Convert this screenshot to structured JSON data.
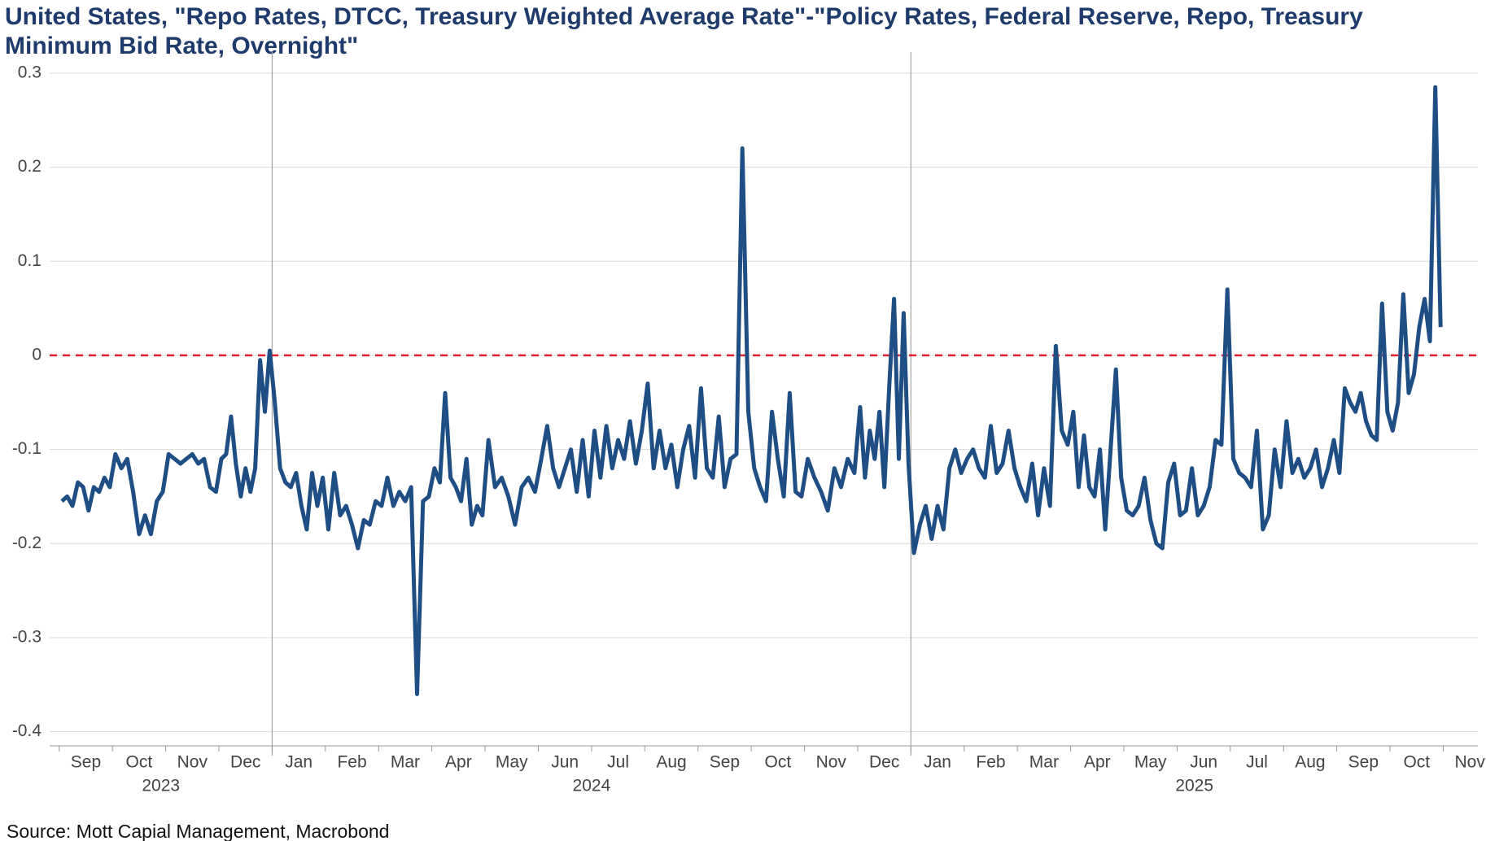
{
  "chart_data": {
    "type": "line",
    "title": [
      "United States, \"Repo Rates, DTCC, Treasury Weighted Average Rate\"-\"Policy Rates, Federal Reserve, Repo, Treasury",
      "Minimum Bid Rate, Overnight\""
    ],
    "source": "Source: Mott Capial Management, Macrobond",
    "ylim": [
      -0.415,
      0.312
    ],
    "yticks": [
      -0.4,
      -0.3,
      -0.2,
      -0.1,
      0.0,
      0.1,
      0.2,
      0.3
    ],
    "grid": true,
    "zero_line": {
      "value": 0,
      "color": "#e0202e"
    },
    "year_lines": [
      "2024-01",
      "2025-01"
    ],
    "xticks": [
      {
        "value": "2023-09",
        "label": "Sep"
      },
      {
        "value": "2023-10",
        "label": "Oct"
      },
      {
        "value": "2023-11",
        "label": "Nov"
      },
      {
        "value": "2023-12",
        "label": "Dec"
      },
      {
        "value": "2024-01",
        "label": "Jan"
      },
      {
        "value": "2024-02",
        "label": "Feb"
      },
      {
        "value": "2024-03",
        "label": "Mar"
      },
      {
        "value": "2024-04",
        "label": "Apr"
      },
      {
        "value": "2024-05",
        "label": "May"
      },
      {
        "value": "2024-06",
        "label": "Jun"
      },
      {
        "value": "2024-07",
        "label": "Jul"
      },
      {
        "value": "2024-08",
        "label": "Aug"
      },
      {
        "value": "2024-09",
        "label": "Sep"
      },
      {
        "value": "2024-10",
        "label": "Oct"
      },
      {
        "value": "2024-11",
        "label": "Nov"
      },
      {
        "value": "2024-12",
        "label": "Dec"
      },
      {
        "value": "2025-01",
        "label": "Jan"
      },
      {
        "value": "2025-02",
        "label": "Feb"
      },
      {
        "value": "2025-03",
        "label": "Mar"
      },
      {
        "value": "2025-04",
        "label": "Apr"
      },
      {
        "value": "2025-05",
        "label": "May"
      },
      {
        "value": "2025-06",
        "label": "Jun"
      },
      {
        "value": "2025-07",
        "label": "Jul"
      },
      {
        "value": "2025-08",
        "label": "Aug"
      },
      {
        "value": "2025-09",
        "label": "Sep"
      },
      {
        "value": "2025-10",
        "label": "Oct"
      },
      {
        "value": "2025-11",
        "label": "Nov"
      }
    ],
    "years": [
      "2023",
      "2024",
      "2025"
    ],
    "series": [
      {
        "color": "#1f4e85",
        "x": [
          "2023-09",
          "2023-09",
          "2023-09",
          "2023-09",
          "2023-09",
          "2023-09",
          "2023-09",
          "2023-09",
          "2023-09",
          "2023-09",
          "2023-10",
          "2023-10",
          "2023-10",
          "2023-10",
          "2023-10",
          "2023-10",
          "2023-10",
          "2023-10",
          "2023-10",
          "2023-11",
          "2023-11",
          "2023-11",
          "2023-11",
          "2023-11",
          "2023-11",
          "2023-11",
          "2023-11",
          "2023-11",
          "2023-12",
          "2023-12",
          "2023-12",
          "2023-12",
          "2023-12",
          "2023-12",
          "2023-12",
          "2023-12",
          "2023-12",
          "2023-12",
          "2023-12",
          "2024-01",
          "2024-01",
          "2024-01",
          "2024-01",
          "2024-01",
          "2024-01",
          "2024-01",
          "2024-01",
          "2024-01",
          "2024-01",
          "2024-02",
          "2024-02",
          "2024-02",
          "2024-02",
          "2024-02",
          "2024-02",
          "2024-02",
          "2024-02",
          "2024-02",
          "2024-03",
          "2024-03",
          "2024-03",
          "2024-03",
          "2024-03",
          "2024-03",
          "2024-03",
          "2024-03",
          "2024-03",
          "2024-04",
          "2024-04",
          "2024-04",
          "2024-04",
          "2024-04",
          "2024-04",
          "2024-04",
          "2024-04",
          "2024-04",
          "2024-04",
          "2024-05",
          "2024-05",
          "2024-05",
          "2024-05",
          "2024-05",
          "2024-05",
          "2024-05",
          "2024-05",
          "2024-06",
          "2024-06",
          "2024-06",
          "2024-06",
          "2024-06",
          "2024-06",
          "2024-06",
          "2024-06",
          "2024-06",
          "2024-07",
          "2024-07",
          "2024-07",
          "2024-07",
          "2024-07",
          "2024-07",
          "2024-07",
          "2024-07",
          "2024-07",
          "2024-08",
          "2024-08",
          "2024-08",
          "2024-08",
          "2024-08",
          "2024-08",
          "2024-08",
          "2024-08",
          "2024-08",
          "2024-09",
          "2024-09",
          "2024-09",
          "2024-09",
          "2024-09",
          "2024-09",
          "2024-09",
          "2024-09",
          "2024-09",
          "2024-10",
          "2024-10",
          "2024-10",
          "2024-10",
          "2024-10",
          "2024-10",
          "2024-10",
          "2024-10",
          "2024-10",
          "2024-11",
          "2024-11",
          "2024-11",
          "2024-11",
          "2024-11",
          "2024-11",
          "2024-11",
          "2024-11",
          "2024-12",
          "2024-12",
          "2024-12",
          "2024-12",
          "2024-12",
          "2024-12",
          "2024-12",
          "2024-12",
          "2024-12",
          "2024-12",
          "2024-12",
          "2025-01",
          "2025-01",
          "2025-01",
          "2025-01",
          "2025-01",
          "2025-01",
          "2025-01",
          "2025-01",
          "2025-01",
          "2025-02",
          "2025-02",
          "2025-02",
          "2025-02",
          "2025-02",
          "2025-02",
          "2025-02",
          "2025-02",
          "2025-02",
          "2025-03",
          "2025-03",
          "2025-03",
          "2025-03",
          "2025-03",
          "2025-03",
          "2025-03",
          "2025-03",
          "2025-03",
          "2025-04",
          "2025-04",
          "2025-04",
          "2025-04",
          "2025-04",
          "2025-04",
          "2025-04",
          "2025-04",
          "2025-04",
          "2025-04",
          "2025-05",
          "2025-05",
          "2025-05",
          "2025-05",
          "2025-05",
          "2025-05",
          "2025-05",
          "2025-05",
          "2025-05",
          "2025-06",
          "2025-06",
          "2025-06",
          "2025-06",
          "2025-06",
          "2025-06",
          "2025-06",
          "2025-06",
          "2025-06",
          "2025-07",
          "2025-07",
          "2025-07",
          "2025-07",
          "2025-07",
          "2025-07",
          "2025-07",
          "2025-07",
          "2025-07",
          "2025-08",
          "2025-08",
          "2025-08",
          "2025-08",
          "2025-08",
          "2025-08",
          "2025-08",
          "2025-08",
          "2025-08",
          "2025-09",
          "2025-09",
          "2025-09",
          "2025-09",
          "2025-09",
          "2025-09",
          "2025-09",
          "2025-09",
          "2025-09",
          "2025-09",
          "2025-10",
          "2025-10",
          "2025-10",
          "2025-10",
          "2025-10",
          "2025-10",
          "2025-10",
          "2025-10",
          "2025-10",
          "2025-10"
        ],
        "values": [
          -0.155,
          -0.15,
          -0.16,
          -0.135,
          -0.14,
          -0.165,
          -0.14,
          -0.145,
          -0.13,
          -0.14,
          -0.105,
          -0.12,
          -0.11,
          -0.145,
          -0.19,
          -0.17,
          -0.19,
          -0.155,
          -0.145,
          -0.105,
          -0.11,
          -0.115,
          -0.11,
          -0.105,
          -0.115,
          -0.11,
          -0.14,
          -0.145,
          -0.11,
          -0.105,
          -0.065,
          -0.115,
          -0.15,
          -0.12,
          -0.145,
          -0.12,
          -0.005,
          -0.06,
          0.005,
          -0.05,
          -0.12,
          -0.135,
          -0.14,
          -0.125,
          -0.16,
          -0.185,
          -0.125,
          -0.16,
          -0.13,
          -0.185,
          -0.125,
          -0.17,
          -0.16,
          -0.18,
          -0.205,
          -0.175,
          -0.18,
          -0.155,
          -0.16,
          -0.13,
          -0.16,
          -0.145,
          -0.155,
          -0.14,
          -0.36,
          -0.155,
          -0.15,
          -0.12,
          -0.135,
          -0.04,
          -0.13,
          -0.14,
          -0.155,
          -0.11,
          -0.18,
          -0.16,
          -0.17,
          -0.09,
          -0.14,
          -0.13,
          -0.15,
          -0.18,
          -0.14,
          -0.13,
          -0.145,
          -0.11,
          -0.075,
          -0.12,
          -0.14,
          -0.12,
          -0.1,
          -0.145,
          -0.09,
          -0.15,
          -0.08,
          -0.13,
          -0.075,
          -0.12,
          -0.09,
          -0.11,
          -0.07,
          -0.115,
          -0.08,
          -0.03,
          -0.12,
          -0.08,
          -0.12,
          -0.095,
          -0.14,
          -0.1,
          -0.075,
          -0.13,
          -0.035,
          -0.12,
          -0.13,
          -0.065,
          -0.14,
          -0.11,
          -0.105,
          0.22,
          -0.06,
          -0.12,
          -0.14,
          -0.155,
          -0.06,
          -0.11,
          -0.15,
          -0.04,
          -0.145,
          -0.15,
          -0.11,
          -0.13,
          -0.145,
          -0.165,
          -0.12,
          -0.14,
          -0.11,
          -0.125,
          -0.055,
          -0.13,
          -0.08,
          -0.11,
          -0.06,
          -0.14,
          -0.035,
          0.06,
          -0.11,
          0.045,
          -0.115,
          -0.21,
          -0.18,
          -0.16,
          -0.195,
          -0.16,
          -0.185,
          -0.12,
          -0.1,
          -0.125,
          -0.11,
          -0.1,
          -0.12,
          -0.13,
          -0.075,
          -0.125,
          -0.115,
          -0.08,
          -0.12,
          -0.14,
          -0.155,
          -0.115,
          -0.17,
          -0.12,
          -0.16,
          0.01,
          -0.08,
          -0.095,
          -0.06,
          -0.14,
          -0.085,
          -0.14,
          -0.15,
          -0.1,
          -0.185,
          -0.1,
          -0.015,
          -0.13,
          -0.165,
          -0.17,
          -0.16,
          -0.13,
          -0.175,
          -0.2,
          -0.205,
          -0.135,
          -0.115,
          -0.17,
          -0.165,
          -0.12,
          -0.17,
          -0.16,
          -0.14,
          -0.09,
          -0.095,
          0.07,
          -0.11,
          -0.125,
          -0.13,
          -0.14,
          -0.08,
          -0.185,
          -0.17,
          -0.1,
          -0.14,
          -0.07,
          -0.125,
          -0.11,
          -0.13,
          -0.12,
          -0.1,
          -0.14,
          -0.12,
          -0.09,
          -0.125,
          -0.035,
          -0.05,
          -0.06,
          -0.04,
          -0.07,
          -0.085,
          -0.09,
          0.055,
          -0.06,
          -0.08,
          -0.05,
          0.065,
          -0.04,
          -0.02,
          0.03,
          0.06,
          0.015,
          0.285,
          0.03
        ]
      }
    ]
  }
}
